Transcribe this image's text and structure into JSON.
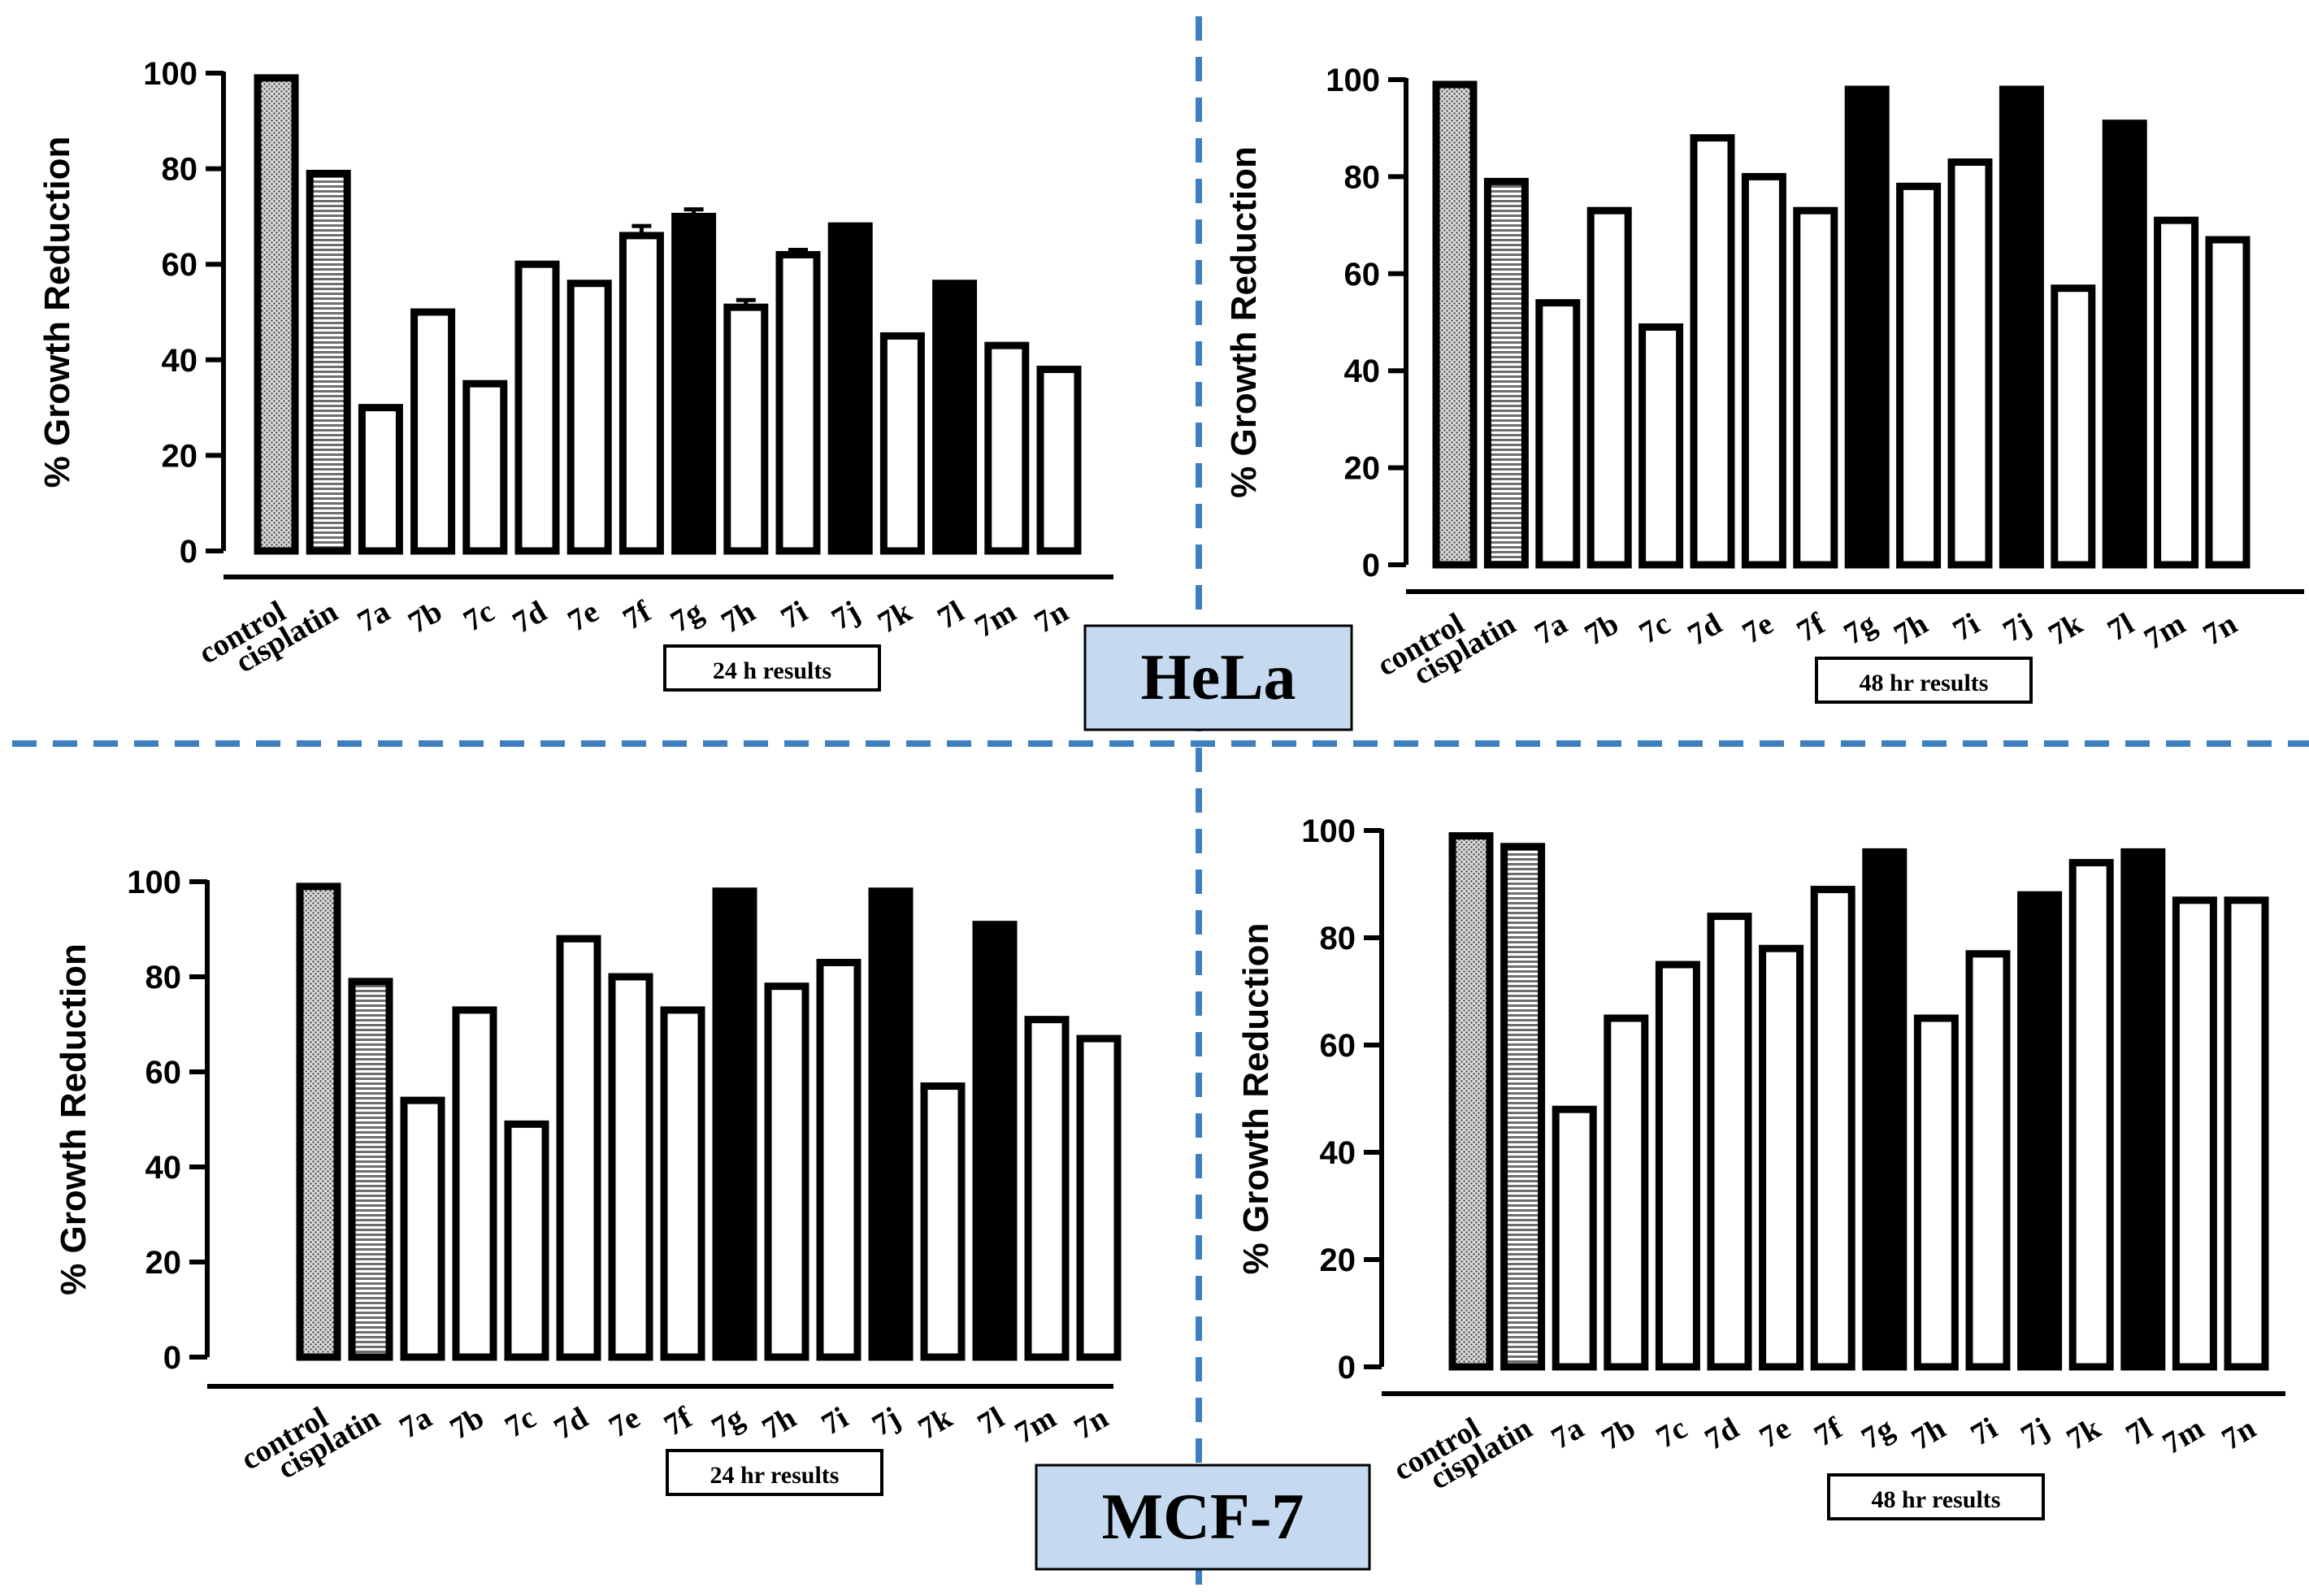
{
  "figure": {
    "labels": {
      "hela": "HeLa",
      "mcf7": "MCF-7"
    },
    "colors": {
      "divider": "#3d7fbf",
      "cell_label_bg": "#c5daf0",
      "bar_edge": "#000000"
    }
  },
  "chart_data": [
    {
      "id": "hela-24",
      "type": "bar",
      "title": "24 h results",
      "xlabel": "24 h results",
      "ylabel": "% Growth Reduction",
      "ylim": [
        0,
        100
      ],
      "yticks": [
        0,
        20,
        40,
        60,
        80,
        100
      ],
      "categories": [
        "control",
        "cisplatin",
        "7a",
        "7b",
        "7c",
        "7d",
        "7e",
        "7f",
        "7g",
        "7h",
        "7i",
        "7j",
        "7k",
        "7l",
        "7m",
        "7n"
      ],
      "values": [
        99,
        79,
        30,
        50,
        35,
        60,
        56,
        66,
        70,
        51,
        62,
        68,
        45,
        56,
        43,
        38
      ],
      "errors": [
        0,
        0,
        0,
        0,
        0,
        0,
        0,
        2,
        1.5,
        1.5,
        1,
        0,
        0,
        0,
        0,
        0
      ],
      "fills": [
        "dots",
        "lines",
        "white",
        "white",
        "white",
        "white",
        "white",
        "white",
        "black",
        "white",
        "white",
        "black",
        "white",
        "black",
        "white",
        "white"
      ]
    },
    {
      "id": "hela-48",
      "type": "bar",
      "title": "48 hr results",
      "xlabel": "48 hr results",
      "ylabel": "% Growth Reduction",
      "ylim": [
        0,
        100
      ],
      "yticks": [
        0,
        20,
        40,
        60,
        80,
        100
      ],
      "categories": [
        "control",
        "cisplatin",
        "7a",
        "7b",
        "7c",
        "7d",
        "7e",
        "7f",
        "7g",
        "7h",
        "7i",
        "7j",
        "7k",
        "7l",
        "7m",
        "7n"
      ],
      "values": [
        99,
        79,
        54,
        73,
        49,
        88,
        80,
        73,
        98,
        78,
        83,
        98,
        57,
        91,
        71,
        67
      ],
      "errors": [
        0,
        0,
        0,
        0,
        0,
        0,
        0,
        0,
        0,
        0,
        0,
        0,
        0,
        0,
        0,
        0
      ],
      "fills": [
        "dots",
        "lines",
        "white",
        "white",
        "white",
        "white",
        "white",
        "white",
        "black",
        "white",
        "white",
        "black",
        "white",
        "black",
        "white",
        "white"
      ]
    },
    {
      "id": "mcf7-24",
      "type": "bar",
      "title": "24 hr results",
      "xlabel": "24 hr results",
      "ylabel": "% Growth Reduction",
      "ylim": [
        0,
        100
      ],
      "yticks": [
        0,
        20,
        40,
        60,
        80,
        100
      ],
      "categories": [
        "control",
        "cisplatin",
        "7a",
        "7b",
        "7c",
        "7d",
        "7e",
        "7f",
        "7g",
        "7h",
        "7i",
        "7j",
        "7k",
        "7l",
        "7m",
        "7n"
      ],
      "values": [
        99,
        79,
        54,
        73,
        49,
        88,
        80,
        73,
        98,
        78,
        83,
        98,
        57,
        91,
        71,
        67
      ],
      "errors": [
        0,
        0,
        0,
        0,
        0,
        0,
        0,
        0,
        0,
        0,
        0,
        0,
        0,
        0,
        0,
        0
      ],
      "fills": [
        "dots",
        "lines",
        "white",
        "white",
        "white",
        "white",
        "white",
        "white",
        "black",
        "white",
        "white",
        "black",
        "white",
        "black",
        "white",
        "white"
      ]
    },
    {
      "id": "mcf7-48",
      "type": "bar",
      "title": "48 hr results",
      "xlabel": "48 hr results",
      "ylabel": "% Growth Reduction",
      "ylim": [
        0,
        100
      ],
      "yticks": [
        0,
        20,
        40,
        60,
        80,
        100
      ],
      "categories": [
        "control",
        "cisplatin",
        "7a",
        "7b",
        "7c",
        "7d",
        "7e",
        "7f",
        "7g",
        "7h",
        "7i",
        "7j",
        "7k",
        "7l",
        "7m",
        "7n"
      ],
      "values": [
        99,
        97,
        48,
        65,
        75,
        84,
        78,
        89,
        96,
        65,
        77,
        88,
        94,
        96,
        87,
        87
      ],
      "errors": [
        0,
        0,
        0,
        0,
        0,
        0,
        0,
        0,
        0,
        0,
        0,
        0,
        0,
        0,
        0,
        0
      ],
      "fills": [
        "dots",
        "lines",
        "white",
        "white",
        "white",
        "white",
        "white",
        "white",
        "black",
        "white",
        "white",
        "black",
        "white",
        "black",
        "white",
        "white"
      ]
    }
  ]
}
